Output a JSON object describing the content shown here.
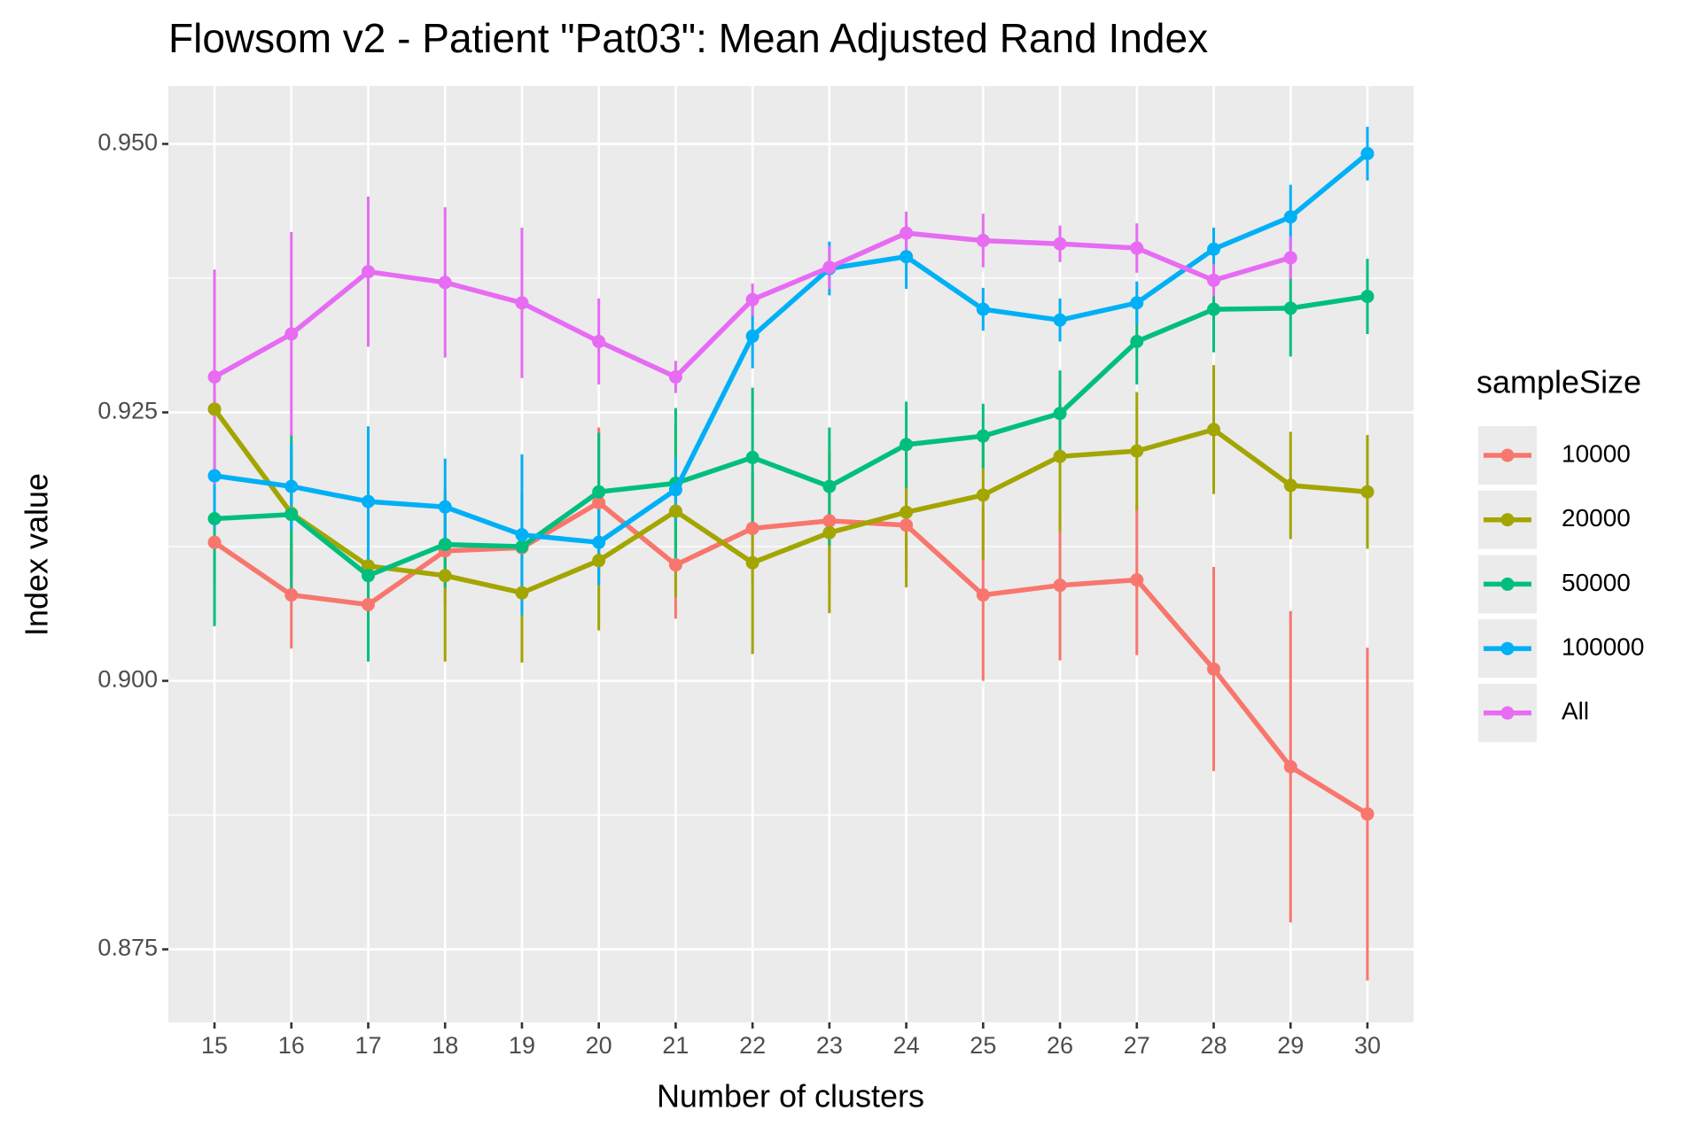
{
  "chart_data": {
    "type": "line",
    "title": "Flowsom v2 - Patient \"Pat03\": Mean Adjusted Rand Index",
    "x_label": "Number of clusters",
    "y_label": "Index value",
    "legend_title": "sampleSize",
    "legend": "right",
    "grid": true,
    "x": [
      15,
      16,
      17,
      18,
      19,
      20,
      21,
      22,
      23,
      24,
      25,
      26,
      27,
      28,
      29,
      30
    ],
    "xlim": [
      14.4,
      30.6
    ],
    "xticks": [
      15,
      16,
      17,
      18,
      19,
      20,
      21,
      22,
      23,
      24,
      25,
      26,
      27,
      28,
      29,
      30
    ],
    "ylim": [
      0.8682,
      0.9554
    ],
    "yticks": [
      {
        "value": 0.875,
        "label": "0.875"
      },
      {
        "value": 0.9,
        "label": "0.900"
      },
      {
        "value": 0.925,
        "label": "0.925"
      },
      {
        "value": 0.95,
        "label": "0.950"
      }
    ],
    "yticks_minor": [
      0.8875,
      0.9125,
      0.9375
    ],
    "series": [
      {
        "name": "10000",
        "color": "#f8766d",
        "values": [
          0.9129,
          0.908,
          0.9071,
          0.9121,
          0.9124,
          0.9166,
          0.9108,
          0.9142,
          0.9149,
          0.9145,
          0.908,
          0.9089,
          0.9094,
          0.9011,
          0.892,
          0.8876
        ],
        "errors": [
          0.004,
          0.005,
          0.005,
          0.005,
          0.005,
          0.007,
          0.005,
          0.005,
          0.006,
          0.004,
          0.008,
          0.007,
          0.007,
          0.0095,
          0.0145,
          0.0155
        ]
      },
      {
        "name": "20000",
        "color": "#a3a500",
        "values": [
          0.9253,
          0.9156,
          0.9107,
          0.9098,
          0.9082,
          0.9112,
          0.9158,
          0.911,
          0.9138,
          0.9157,
          0.9173,
          0.9209,
          0.9214,
          0.9234,
          0.9182,
          0.9176
        ],
        "errors": [
          0.0015,
          0.006,
          0.005,
          0.008,
          0.0065,
          0.0065,
          0.008,
          0.0085,
          0.0075,
          0.007,
          0.006,
          0.007,
          0.0055,
          0.006,
          0.005,
          0.0053
        ]
      },
      {
        "name": "50000",
        "color": "#00bf7d",
        "values": [
          0.9151,
          0.9155,
          0.9098,
          0.9127,
          0.9125,
          0.9176,
          0.9184,
          0.9208,
          0.9181,
          0.922,
          0.9228,
          0.9249,
          0.9316,
          0.9346,
          0.9347,
          0.9358
        ],
        "errors": [
          0.01,
          0.0075,
          0.008,
          0.004,
          0.005,
          0.0055,
          0.007,
          0.0065,
          0.0055,
          0.004,
          0.003,
          0.004,
          0.004,
          0.004,
          0.0045,
          0.0035
        ]
      },
      {
        "name": "100000",
        "color": "#00b0f6",
        "values": [
          0.9191,
          0.9181,
          0.9167,
          0.9162,
          0.9136,
          0.9129,
          0.9178,
          0.9321,
          0.9384,
          0.9395,
          0.9346,
          0.9336,
          0.9352,
          0.9402,
          0.9432,
          0.9491
        ],
        "errors": [
          0.005,
          0.004,
          0.007,
          0.0045,
          0.0075,
          0.004,
          0.003,
          0.003,
          0.0025,
          0.003,
          0.002,
          0.002,
          0.002,
          0.002,
          0.003,
          0.0025
        ]
      },
      {
        "name": "All",
        "color": "#e76bf3",
        "values": [
          0.9283,
          0.9323,
          0.9381,
          0.9371,
          0.9352,
          0.9316,
          0.9283,
          0.9355,
          0.9385,
          0.9417,
          0.941,
          0.9407,
          0.9403,
          0.9373,
          0.9394,
          null
        ],
        "errors": [
          0.01,
          0.0095,
          0.007,
          0.007,
          0.007,
          0.004,
          0.0015,
          0.0015,
          0.002,
          0.002,
          0.0025,
          0.0017,
          0.0023,
          0.0015,
          0.002,
          null
        ]
      }
    ]
  }
}
